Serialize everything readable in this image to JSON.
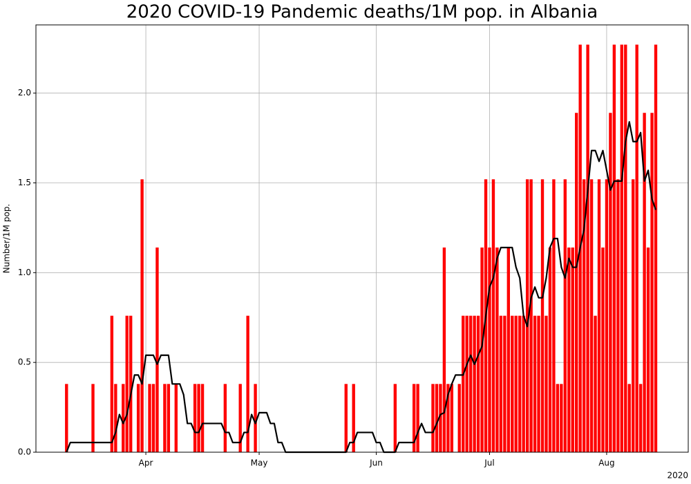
{
  "chart_data": {
    "type": "bar",
    "title": "2020 COVID-19 Pandemic deaths/1M pop. in Albania",
    "y_label": "Number/1M pop.",
    "x_offset_label": "2020",
    "xlim": [
      62.9,
      235.6
    ],
    "xticks": [
      {
        "value": 92,
        "label": "Apr"
      },
      {
        "value": 122,
        "label": "May"
      },
      {
        "value": 153,
        "label": "Jun"
      },
      {
        "value": 183,
        "label": "Jul"
      },
      {
        "value": 214,
        "label": "Aug"
      }
    ],
    "ylim": [
      0,
      2.38
    ],
    "yticks": [
      {
        "value": 0,
        "label": "0.0"
      },
      {
        "value": 0.5,
        "label": "0.5"
      },
      {
        "value": 1,
        "label": "1.0"
      },
      {
        "value": 1.5,
        "label": "1.5"
      },
      {
        "value": 2,
        "label": "2.0"
      }
    ],
    "grid": true,
    "series": [
      {
        "type": "bar",
        "color": "#ff0000",
        "x": [
          71,
          78,
          83,
          84,
          86,
          87,
          88,
          90,
          91,
          93,
          94,
          95,
          97,
          98,
          100,
          105,
          106,
          107,
          113,
          117,
          119,
          121,
          145,
          147,
          158,
          163,
          164,
          168,
          169,
          170,
          171,
          172,
          173,
          175,
          176,
          177,
          178,
          179,
          180,
          181,
          182,
          183,
          184,
          185,
          186,
          187,
          188,
          189,
          190,
          191,
          192,
          193,
          194,
          195,
          196,
          197,
          198,
          199,
          200,
          201,
          202,
          203,
          204,
          205,
          206,
          207,
          208,
          209,
          210,
          211,
          212,
          213,
          214,
          215,
          216,
          217,
          218,
          219,
          220,
          221,
          222,
          223,
          224,
          225,
          226,
          227
        ],
        "values": [
          0.38,
          0.38,
          0.76,
          0.38,
          0.38,
          0.76,
          0.76,
          0.38,
          1.52,
          0.38,
          0.38,
          1.14,
          0.38,
          0.38,
          0.38,
          0.38,
          0.38,
          0.38,
          0.38,
          0.38,
          0.76,
          0.38,
          0.38,
          0.38,
          0.38,
          0.38,
          0.38,
          0.38,
          0.38,
          0.38,
          1.14,
          0.38,
          0.38,
          0.38,
          0.76,
          0.76,
          0.76,
          0.76,
          0.76,
          1.14,
          1.52,
          1.14,
          1.52,
          1.14,
          0.76,
          0.76,
          1.14,
          0.76,
          0.76,
          0.76,
          0.76,
          1.52,
          1.52,
          0.76,
          0.76,
          1.52,
          0.76,
          1.14,
          1.52,
          0.38,
          0.38,
          1.52,
          1.14,
          1.14,
          1.89,
          2.27,
          1.52,
          2.27,
          1.52,
          0.76,
          1.52,
          1.14,
          1.52,
          1.89,
          2.27,
          1.52,
          2.27,
          2.27,
          0.38,
          1.52,
          2.27,
          0.38,
          1.89,
          1.14,
          1.89,
          2.27
        ]
      },
      {
        "type": "line",
        "color": "#000000",
        "x": [
          71,
          72,
          83,
          84,
          85,
          86,
          87,
          88,
          89,
          90,
          91,
          92,
          94,
          95,
          96,
          98,
          99,
          101,
          102,
          103,
          104,
          105,
          106,
          107,
          112,
          113,
          114,
          115,
          117,
          118,
          119,
          120,
          121,
          122,
          124,
          125,
          126,
          127,
          128,
          129,
          145,
          146,
          147,
          148,
          152,
          153,
          154,
          155,
          158,
          159,
          163,
          164,
          165,
          166,
          168,
          169,
          170,
          171,
          172,
          173,
          174,
          176,
          177,
          178,
          179,
          180,
          181,
          182,
          183,
          184,
          185,
          186,
          189,
          190,
          191,
          192,
          193,
          194,
          195,
          196,
          197,
          198,
          199,
          200,
          201,
          202,
          203,
          204,
          205,
          206,
          207,
          208,
          209,
          210,
          211,
          212,
          213,
          214,
          215,
          216,
          218,
          219,
          220,
          221,
          222,
          223,
          224,
          225,
          226,
          227
        ],
        "values": [
          0,
          0.054,
          0.054,
          0.11,
          0.21,
          0.16,
          0.21,
          0.32,
          0.43,
          0.43,
          0.38,
          0.54,
          0.54,
          0.49,
          0.54,
          0.54,
          0.38,
          0.38,
          0.32,
          0.16,
          0.16,
          0.11,
          0.11,
          0.16,
          0.16,
          0.11,
          0.11,
          0.054,
          0.054,
          0.11,
          0.11,
          0.21,
          0.16,
          0.22,
          0.22,
          0.16,
          0.16,
          0.054,
          0.054,
          0,
          0,
          0.054,
          0.054,
          0.11,
          0.11,
          0.054,
          0.054,
          0,
          0,
          0.054,
          0.054,
          0.11,
          0.16,
          0.11,
          0.11,
          0.16,
          0.21,
          0.22,
          0.32,
          0.38,
          0.43,
          0.43,
          0.49,
          0.54,
          0.49,
          0.54,
          0.59,
          0.76,
          0.92,
          0.97,
          1.08,
          1.14,
          1.14,
          1.03,
          0.97,
          0.76,
          0.7,
          0.86,
          0.92,
          0.86,
          0.86,
          0.97,
          1.14,
          1.19,
          1.19,
          1.03,
          0.97,
          1.08,
          1.03,
          1.03,
          1.14,
          1.24,
          1.46,
          1.68,
          1.68,
          1.62,
          1.68,
          1.57,
          1.46,
          1.51,
          1.51,
          1.73,
          1.84,
          1.73,
          1.73,
          1.78,
          1.51,
          1.57,
          1.41,
          1.35
        ]
      }
    ]
  }
}
